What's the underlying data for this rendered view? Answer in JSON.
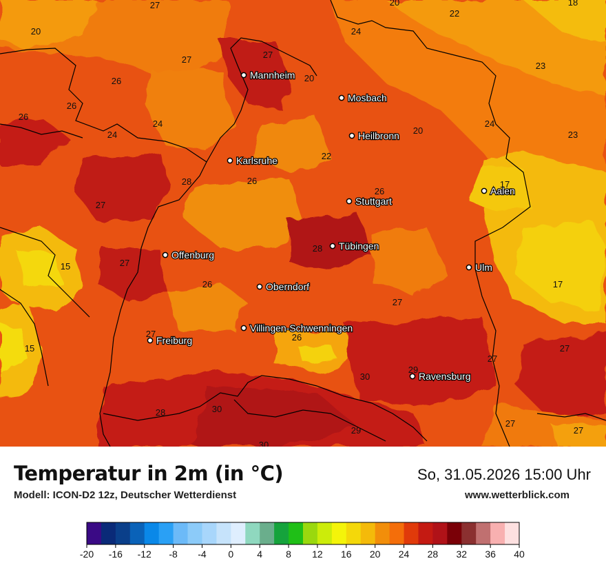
{
  "title": "Temperatur in 2m (in °C)",
  "model": "Modell: ICON-D2 12z, Deutscher Wetterdienst",
  "datetime": "So, 31.05.2026 15:00 Uhr",
  "website": "www.wetterblick.com",
  "cities": [
    {
      "name": "Mannheim"
    },
    {
      "name": "Mosbach"
    },
    {
      "name": "Heilbronn"
    },
    {
      "name": "Karlsruhe"
    },
    {
      "name": "Stuttgart"
    },
    {
      "name": "Aalen"
    },
    {
      "name": "Tübingen"
    },
    {
      "name": "Offenburg"
    },
    {
      "name": "Ulm"
    },
    {
      "name": "Oberndorf"
    },
    {
      "name": "Villingen-Schwenningen"
    },
    {
      "name": "Freiburg"
    },
    {
      "name": "Ravensburg"
    }
  ],
  "temperature_labels": [
    "27",
    "20",
    "22",
    "18",
    "20",
    "24",
    "27",
    "23",
    "26",
    "20",
    "26",
    "24",
    "27",
    "26",
    "20",
    "24",
    "23",
    "24",
    "22",
    "17",
    "28",
    "26",
    "26",
    "27",
    "15",
    "27",
    "28",
    "26",
    "17",
    "27",
    "15",
    "27",
    "26",
    "29",
    "27",
    "30",
    "27",
    "28",
    "30",
    "29",
    "27",
    "27",
    "30"
  ],
  "colorbar": {
    "tick_labels": [
      "-20",
      "-16",
      "-12",
      "-8",
      "-4",
      "0",
      "4",
      "8",
      "12",
      "16",
      "20",
      "24",
      "28",
      "32",
      "36",
      "40"
    ],
    "colors": [
      "#3a0a85",
      "#0a2a78",
      "#0a3f8a",
      "#0a62b8",
      "#0a88e8",
      "#2aa0f5",
      "#6cbaf8",
      "#8ccbf9",
      "#a8d6fb",
      "#c6e3fb",
      "#dfeefe",
      "#8fd8bf",
      "#6aae8c",
      "#15a33c",
      "#1fbf17",
      "#9ad80e",
      "#ccec0a",
      "#f4f40a",
      "#f4d80a",
      "#f4ba0a",
      "#f28e0a",
      "#f46e0a",
      "#e03a0a",
      "#c41a12",
      "#b01218",
      "#7a0007",
      "#8b3030",
      "#c07070",
      "#f8b0b0",
      "#fde0e0"
    ]
  }
}
